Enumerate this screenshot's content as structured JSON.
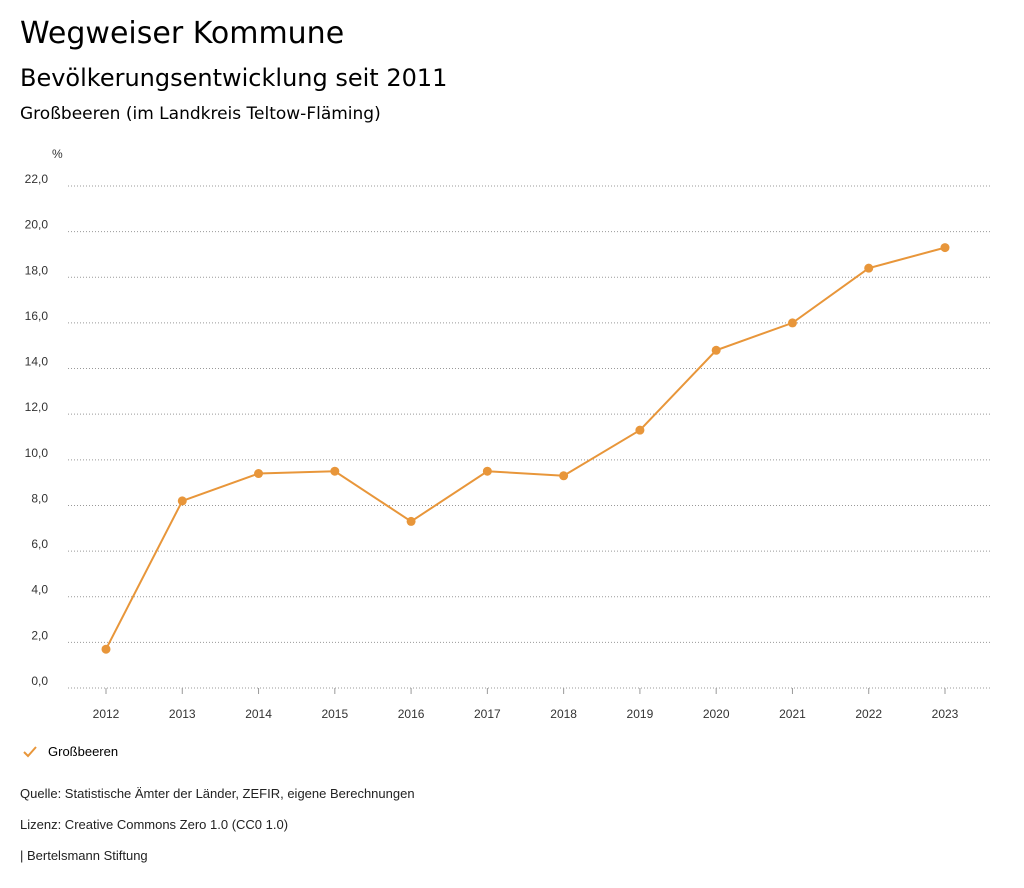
{
  "header": {
    "title": "Wegweiser Kommune",
    "subtitle": "Bevölkerungsentwicklung seit 2011",
    "region": "Großbeeren (im Landkreis Teltow-Fläming)"
  },
  "legend": {
    "label": "Großbeeren",
    "icon": "checkmark-icon"
  },
  "footer": {
    "source": "Quelle: Statistische Ämter der Länder, ZEFIR, eigene Berechnungen",
    "license": "Lizenz: Creative Commons Zero 1.0 (CC0 1.0)",
    "publisher": "| Bertelsmann Stiftung"
  },
  "chart_data": {
    "type": "line",
    "unit_label": "%",
    "categories": [
      "2012",
      "2013",
      "2014",
      "2015",
      "2016",
      "2017",
      "2018",
      "2019",
      "2020",
      "2021",
      "2022",
      "2023"
    ],
    "series": [
      {
        "name": "Großbeeren",
        "color": "#E8963A",
        "values": [
          1.7,
          8.2,
          9.4,
          9.5,
          7.3,
          9.5,
          9.3,
          11.3,
          14.8,
          16.0,
          18.4,
          19.3
        ]
      }
    ],
    "ylim": [
      0,
      22
    ],
    "yticks": [
      "0,0",
      "2,0",
      "4,0",
      "6,0",
      "8,0",
      "10,0",
      "12,0",
      "14,0",
      "16,0",
      "18,0",
      "20,0",
      "22,0"
    ],
    "grid": true,
    "legend_position": "bottom-left"
  }
}
